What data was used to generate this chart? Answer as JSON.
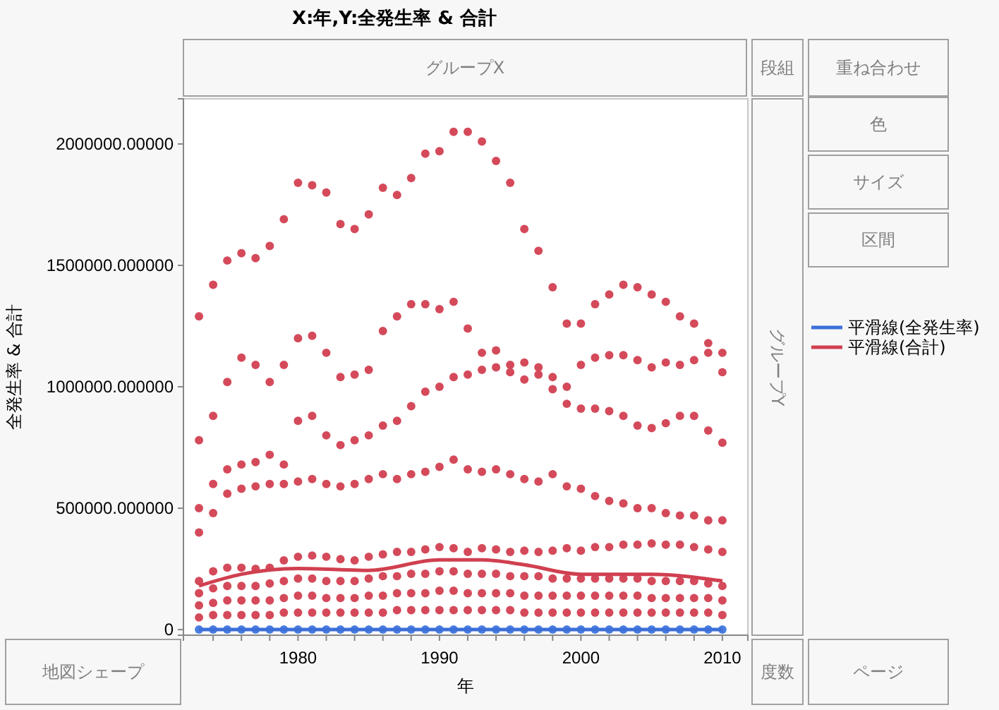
{
  "chart_data": {
    "type": "scatter",
    "title": "X:年,Y:全発生率 & 合計",
    "xlabel": "年",
    "ylabel": "全発生率 & 合計",
    "x": [
      1973,
      1974,
      1975,
      1976,
      1977,
      1978,
      1979,
      1980,
      1981,
      1982,
      1983,
      1984,
      1985,
      1986,
      1987,
      1988,
      1989,
      1990,
      1991,
      1992,
      1993,
      1994,
      1995,
      1996,
      1997,
      1998,
      1999,
      2000,
      2001,
      2002,
      2003,
      2004,
      2005,
      2006,
      2007,
      2008,
      2009,
      2010
    ],
    "xlim": [
      1971.9,
      2011.8
    ],
    "ylim": [
      -23000,
      2186000
    ],
    "xticks": [
      {
        "value": 1974,
        "label": null
      },
      {
        "value": 1976,
        "label": null
      },
      {
        "value": 1978,
        "label": null
      },
      1980,
      {
        "value": 1982,
        "label": null
      },
      {
        "value": 1984,
        "label": null
      },
      {
        "value": 1986,
        "label": null
      },
      {
        "value": 1988,
        "label": null
      },
      1990,
      {
        "value": 1992,
        "label": null
      },
      {
        "value": 1994,
        "label": null
      },
      {
        "value": 1996,
        "label": null
      },
      {
        "value": 1998,
        "label": null
      },
      2000,
      {
        "value": 2002,
        "label": null
      },
      {
        "value": 2004,
        "label": null
      },
      {
        "value": 2006,
        "label": null
      },
      {
        "value": 2008,
        "label": null
      },
      2010
    ],
    "yticks": [
      0,
      {
        "value": 500000,
        "label": "500000.000000"
      },
      {
        "value": 1000000,
        "label": "1000000.000000"
      },
      {
        "value": 1500000,
        "label": "1500000.000000"
      },
      {
        "value": 2000000,
        "label": "2000000.00000"
      }
    ],
    "marker": "circle",
    "grid": false,
    "legend": "right",
    "series": [
      {
        "color": "#d44a5a",
        "values": [
          1290000,
          1420000,
          1520000,
          1550000,
          1530000,
          1580000,
          1690000,
          1840000,
          1830000,
          1800000,
          1670000,
          1650000,
          1710000,
          1820000,
          1790000,
          1860000,
          1960000,
          1970000,
          2050000,
          2050000,
          2010000,
          1930000,
          1840000,
          1650000,
          1560000,
          1410000,
          1260000,
          1260000,
          1340000,
          1380000,
          1420000,
          1410000,
          1380000,
          1350000,
          1290000,
          1260000,
          1180000,
          1140000
        ]
      },
      {
        "color": "#d44a5a",
        "values": [
          780000,
          880000,
          1020000,
          1120000,
          1090000,
          1020000,
          1090000,
          1200000,
          1210000,
          1140000,
          1040000,
          1050000,
          1070000,
          1230000,
          1290000,
          1340000,
          1340000,
          1320000,
          1350000,
          1240000,
          1140000,
          1150000,
          1090000,
          1100000,
          1080000,
          1040000,
          1000000,
          1090000,
          1120000,
          1130000,
          1130000,
          1110000,
          1080000,
          1100000,
          1090000,
          1110000,
          1140000,
          1060000
        ]
      },
      {
        "color": "#d44a5a",
        "values": [
          500000,
          600000,
          660000,
          680000,
          690000,
          720000,
          680000,
          860000,
          880000,
          800000,
          760000,
          780000,
          800000,
          840000,
          860000,
          920000,
          980000,
          1000000,
          1040000,
          1050000,
          1070000,
          1080000,
          1060000,
          1030000,
          1050000,
          990000,
          930000,
          910000,
          910000,
          900000,
          880000,
          840000,
          830000,
          850000,
          880000,
          880000,
          820000,
          770000
        ]
      },
      {
        "color": "#d44a5a",
        "values": [
          400000,
          480000,
          560000,
          580000,
          590000,
          600000,
          600000,
          610000,
          620000,
          600000,
          590000,
          600000,
          620000,
          640000,
          620000,
          640000,
          650000,
          670000,
          700000,
          660000,
          650000,
          660000,
          640000,
          620000,
          610000,
          640000,
          590000,
          580000,
          550000,
          530000,
          520000,
          500000,
          500000,
          480000,
          470000,
          470000,
          450000,
          450000
        ]
      },
      {
        "color": "#d44a5a",
        "values": [
          200000,
          240000,
          255000,
          255000,
          250000,
          255000,
          285000,
          300000,
          305000,
          300000,
          290000,
          285000,
          300000,
          310000,
          320000,
          320000,
          330000,
          340000,
          335000,
          320000,
          335000,
          330000,
          320000,
          325000,
          320000,
          325000,
          335000,
          325000,
          340000,
          340000,
          350000,
          350000,
          355000,
          350000,
          350000,
          340000,
          330000,
          320000
        ]
      },
      {
        "color": "#d44a5a",
        "values": [
          150000,
          170000,
          180000,
          180000,
          180000,
          190000,
          200000,
          210000,
          210000,
          200000,
          200000,
          200000,
          210000,
          220000,
          220000,
          230000,
          230000,
          240000,
          240000,
          230000,
          230000,
          230000,
          220000,
          220000,
          220000,
          210000,
          210000,
          210000,
          210000,
          210000,
          210000,
          210000,
          200000,
          200000,
          200000,
          200000,
          190000,
          180000
        ]
      },
      {
        "color": "#d44a5a",
        "values": [
          100000,
          110000,
          120000,
          120000,
          120000,
          120000,
          130000,
          140000,
          140000,
          130000,
          130000,
          130000,
          140000,
          140000,
          150000,
          150000,
          150000,
          160000,
          160000,
          150000,
          150000,
          150000,
          150000,
          140000,
          140000,
          140000,
          140000,
          140000,
          140000,
          140000,
          140000,
          140000,
          130000,
          130000,
          130000,
          130000,
          130000,
          120000
        ]
      },
      {
        "color": "#d44a5a",
        "values": [
          50000,
          60000,
          60000,
          60000,
          60000,
          60000,
          70000,
          70000,
          70000,
          70000,
          70000,
          70000,
          70000,
          70000,
          80000,
          80000,
          80000,
          80000,
          80000,
          80000,
          80000,
          80000,
          80000,
          70000,
          70000,
          70000,
          70000,
          70000,
          70000,
          70000,
          70000,
          70000,
          70000,
          70000,
          70000,
          70000,
          70000,
          60000
        ]
      },
      {
        "color": "#4a7ee0",
        "values": [
          0,
          0,
          0,
          0,
          0,
          0,
          0,
          0,
          0,
          0,
          0,
          0,
          0,
          0,
          0,
          0,
          0,
          0,
          0,
          0,
          0,
          0,
          0,
          0,
          0,
          0,
          0,
          0,
          0,
          0,
          0,
          0,
          0,
          0,
          0,
          0,
          0,
          0
        ]
      },
      {
        "name": "平滑線(全発生率)",
        "type": "line",
        "marker": "none",
        "color": "#3c6fd8",
        "x": [
          1973,
          1980,
          1990,
          2000,
          2010
        ],
        "values": [
          0,
          0,
          0,
          0,
          0
        ]
      },
      {
        "name": "平滑線(合計)",
        "type": "line",
        "marker": "none",
        "color": "#d04050",
        "x": [
          1973,
          1976,
          1980,
          1985,
          1990,
          1993,
          1996,
          2000,
          2005,
          2010
        ],
        "values": [
          180000,
          228000,
          252000,
          244000,
          287000,
          287000,
          267000,
          228000,
          228000,
          200000
        ]
      }
    ],
    "annotations": [
      "グループX",
      "段組",
      "重ね合わせ",
      "色",
      "サイズ",
      "区間",
      "グループY",
      "地図シェープ",
      "度数",
      "ページ"
    ]
  }
}
